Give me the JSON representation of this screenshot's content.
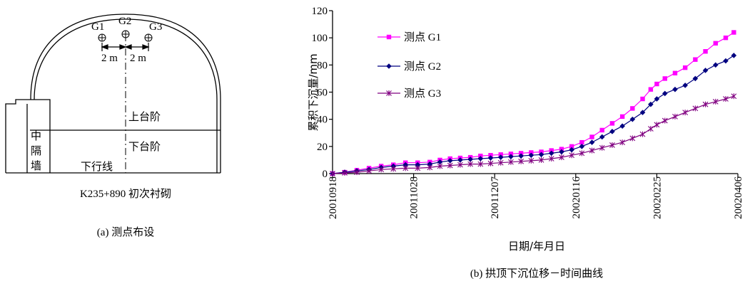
{
  "left_panel": {
    "g1": "G1",
    "g2": "G2",
    "g3": "G3",
    "dim_left": "2 m",
    "dim_right": "2 m",
    "upper_bench": "上台阶",
    "lower_bench": "下台阶",
    "downline": "下行线",
    "wall_char_1": "中",
    "wall_char_2": "隔",
    "wall_char_3": "墙",
    "section_label": "K235+890 初次衬砌",
    "caption": "(a)  测点布设"
  },
  "right_panel": {
    "caption": "(b)  拱顶下沉位移－时间曲线"
  },
  "colors": {
    "g1": "#ff00ff",
    "g2": "#000080",
    "g3": "#800080"
  },
  "chart_data": {
    "type": "line",
    "xlabel": "日期/年月日",
    "ylabel": "累积下沉量/mm",
    "ylim": [
      0,
      120
    ],
    "yticks": [
      0,
      20,
      40,
      60,
      80,
      100,
      120
    ],
    "xlim": [
      "2001-09-18",
      "2002-04-06"
    ],
    "xtick_labels": [
      "20010918",
      "20011028",
      "20011207",
      "20020116",
      "20020225",
      "20020406"
    ],
    "legend_position": "upper-left",
    "series": [
      {
        "name": "测点 G1",
        "color": "#ff00ff",
        "marker": "square",
        "points": [
          [
            "2001-09-18",
            0
          ],
          [
            "2001-09-24",
            1
          ],
          [
            "2001-09-30",
            2.5
          ],
          [
            "2001-10-06",
            4
          ],
          [
            "2001-10-12",
            5.5
          ],
          [
            "2001-10-18",
            6.5
          ],
          [
            "2001-10-24",
            8
          ],
          [
            "2001-10-30",
            8
          ],
          [
            "2001-11-05",
            8.5
          ],
          [
            "2001-11-10",
            10
          ],
          [
            "2001-11-15",
            11
          ],
          [
            "2001-11-20",
            11.5
          ],
          [
            "2001-11-25",
            12
          ],
          [
            "2001-11-30",
            13
          ],
          [
            "2001-12-05",
            13.5
          ],
          [
            "2001-12-10",
            14
          ],
          [
            "2001-12-15",
            14.5
          ],
          [
            "2001-12-20",
            15
          ],
          [
            "2001-12-25",
            15.5
          ],
          [
            "2001-12-30",
            16
          ],
          [
            "2002-01-04",
            17
          ],
          [
            "2002-01-09",
            18
          ],
          [
            "2002-01-14",
            20
          ],
          [
            "2002-01-19",
            23
          ],
          [
            "2002-01-24",
            27
          ],
          [
            "2002-01-29",
            32
          ],
          [
            "2002-02-03",
            37
          ],
          [
            "2002-02-08",
            42
          ],
          [
            "2002-02-13",
            48
          ],
          [
            "2002-02-18",
            55
          ],
          [
            "2002-02-22",
            62
          ],
          [
            "2002-02-25",
            66
          ],
          [
            "2002-03-01",
            70
          ],
          [
            "2002-03-06",
            74
          ],
          [
            "2002-03-11",
            78
          ],
          [
            "2002-03-16",
            84
          ],
          [
            "2002-03-21",
            90
          ],
          [
            "2002-03-26",
            96
          ],
          [
            "2002-03-31",
            100
          ],
          [
            "2002-04-04",
            104
          ]
        ]
      },
      {
        "name": "测点 G2",
        "color": "#000080",
        "marker": "diamond",
        "points": [
          [
            "2001-09-18",
            0
          ],
          [
            "2001-09-24",
            1
          ],
          [
            "2001-09-30",
            2
          ],
          [
            "2001-10-06",
            3
          ],
          [
            "2001-10-12",
            4.5
          ],
          [
            "2001-10-18",
            5.5
          ],
          [
            "2001-10-24",
            6.5
          ],
          [
            "2001-10-30",
            6.5
          ],
          [
            "2001-11-05",
            7
          ],
          [
            "2001-11-10",
            8.5
          ],
          [
            "2001-11-15",
            9.5
          ],
          [
            "2001-11-20",
            10
          ],
          [
            "2001-11-25",
            10.5
          ],
          [
            "2001-11-30",
            11
          ],
          [
            "2001-12-05",
            11.5
          ],
          [
            "2001-12-10",
            12
          ],
          [
            "2001-12-15",
            12.5
          ],
          [
            "2001-12-20",
            13
          ],
          [
            "2001-12-25",
            13.5
          ],
          [
            "2001-12-30",
            14
          ],
          [
            "2002-01-04",
            15
          ],
          [
            "2002-01-09",
            16
          ],
          [
            "2002-01-14",
            17.5
          ],
          [
            "2002-01-19",
            20
          ],
          [
            "2002-01-24",
            23
          ],
          [
            "2002-01-29",
            27
          ],
          [
            "2002-02-03",
            31
          ],
          [
            "2002-02-08",
            35
          ],
          [
            "2002-02-13",
            40
          ],
          [
            "2002-02-18",
            45
          ],
          [
            "2002-02-22",
            51
          ],
          [
            "2002-02-25",
            55
          ],
          [
            "2002-03-01",
            59
          ],
          [
            "2002-03-06",
            62
          ],
          [
            "2002-03-11",
            65
          ],
          [
            "2002-03-16",
            70
          ],
          [
            "2002-03-21",
            76
          ],
          [
            "2002-03-26",
            80
          ],
          [
            "2002-03-31",
            83
          ],
          [
            "2002-04-04",
            87
          ]
        ]
      },
      {
        "name": "测点 G3",
        "color": "#800080",
        "marker": "asterisk",
        "points": [
          [
            "2001-09-18",
            0
          ],
          [
            "2001-09-24",
            0.5
          ],
          [
            "2001-09-30",
            1
          ],
          [
            "2001-10-06",
            2
          ],
          [
            "2001-10-12",
            3
          ],
          [
            "2001-10-18",
            3.5
          ],
          [
            "2001-10-24",
            4
          ],
          [
            "2001-10-30",
            4
          ],
          [
            "2001-11-05",
            4.5
          ],
          [
            "2001-11-10",
            5.5
          ],
          [
            "2001-11-15",
            6
          ],
          [
            "2001-11-20",
            6.5
          ],
          [
            "2001-11-25",
            7
          ],
          [
            "2001-11-30",
            7
          ],
          [
            "2001-12-05",
            7.5
          ],
          [
            "2001-12-10",
            8
          ],
          [
            "2001-12-15",
            8.5
          ],
          [
            "2001-12-20",
            9
          ],
          [
            "2001-12-25",
            9.5
          ],
          [
            "2001-12-30",
            10
          ],
          [
            "2002-01-04",
            11
          ],
          [
            "2002-01-09",
            12
          ],
          [
            "2002-01-14",
            13.5
          ],
          [
            "2002-01-19",
            15
          ],
          [
            "2002-01-24",
            17
          ],
          [
            "2002-01-29",
            19
          ],
          [
            "2002-02-03",
            21
          ],
          [
            "2002-02-08",
            23
          ],
          [
            "2002-02-13",
            26
          ],
          [
            "2002-02-18",
            29
          ],
          [
            "2002-02-22",
            33
          ],
          [
            "2002-02-25",
            36
          ],
          [
            "2002-03-01",
            39
          ],
          [
            "2002-03-06",
            42
          ],
          [
            "2002-03-11",
            45
          ],
          [
            "2002-03-16",
            48
          ],
          [
            "2002-03-21",
            51
          ],
          [
            "2002-03-26",
            53
          ],
          [
            "2002-03-31",
            55
          ],
          [
            "2002-04-04",
            57
          ]
        ]
      }
    ]
  }
}
